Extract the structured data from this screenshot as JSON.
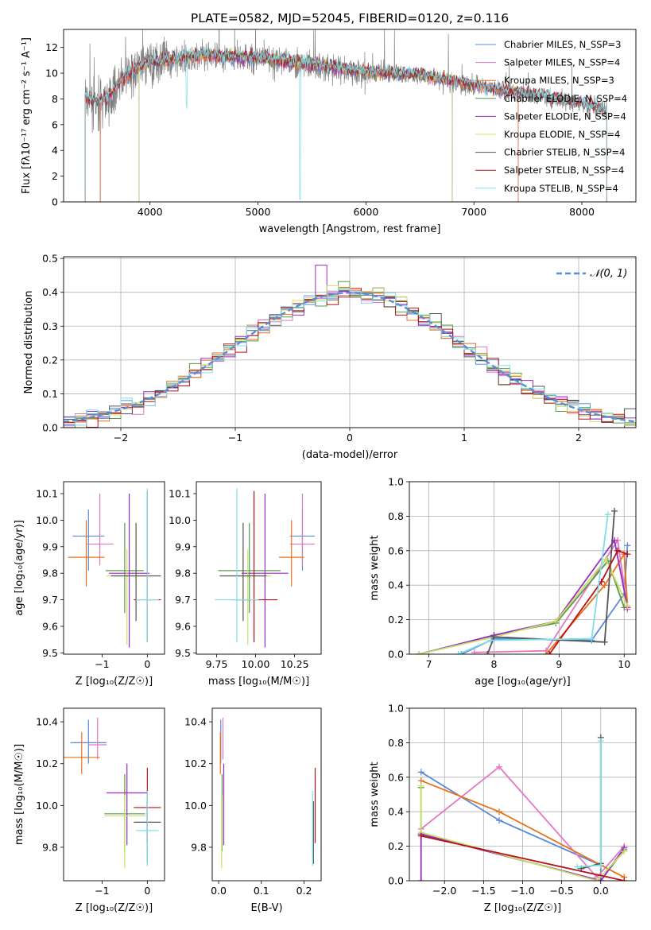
{
  "colors": {
    "chabrier_miles": "#5b8bd6",
    "salpeter_miles": "#e377c2",
    "kroupa_miles": "#e8711a",
    "chabrier_elodie": "#5a9a47",
    "salpeter_elodie": "#9a2bc0",
    "kroupa_elodie": "#c8e06a",
    "chabrier_stelib": "#555555",
    "salpeter_stelib": "#b5121b",
    "kroupa_stelib": "#7fdfe8",
    "spectrum": "#808080",
    "normal_curve": "#5b8bd6",
    "grid": "#b0b0b0"
  },
  "chart_data": [
    {
      "id": "spectrum",
      "type": "line",
      "title": "PLATE=0582, MJD=52045, FIBERID=0120, z=0.116",
      "xlabel": "wavelength [Angstrom, rest frame]",
      "ylabel": "Flux [fλ10⁻¹⁷ erg cm⁻² s⁻¹ A⁻¹]",
      "xlim": [
        3200,
        8500
      ],
      "ylim": [
        0,
        13.4
      ],
      "xticks": [
        4000,
        5000,
        6000,
        7000,
        8000
      ],
      "yticks": [
        0,
        2,
        4,
        6,
        8,
        10,
        12
      ],
      "grid": false,
      "legend_position": "top-right",
      "legend": [
        "Chabrier MILES, N_SSP=3",
        "Salpeter MILES, N_SSP=4",
        "Kroupa MILES, N_SSP=3",
        "Chabrier ELODIE, N_SSP=4",
        "Salpeter ELODIE, N_SSP=4",
        "Kroupa ELODIE, N_SSP=4",
        "Chabrier STELIB, N_SSP=4",
        "Salpeter STELIB, N_SSP=4",
        "Kroupa STELIB, N_SSP=4"
      ],
      "continuum": {
        "x": [
          3400,
          3500,
          3600,
          3700,
          3800,
          3900,
          4000,
          4200,
          4500,
          5000,
          5500,
          6000,
          6500,
          7000,
          7500,
          8000,
          8230
        ],
        "y": [
          8.1,
          7.6,
          7.9,
          9.0,
          9.8,
          10.4,
          10.8,
          11.0,
          11.3,
          11.1,
          10.6,
          10.0,
          9.8,
          9.0,
          8.3,
          7.6,
          7.0
        ]
      }
    },
    {
      "id": "residual_hist",
      "type": "histogram",
      "xlabel": "(data-model)/error",
      "ylabel": "Normed distribution",
      "xlim": [
        -2.5,
        2.5
      ],
      "ylim": [
        0,
        0.505
      ],
      "xticks": [
        -2,
        -1,
        0,
        1,
        2
      ],
      "yticks": [
        0.0,
        0.1,
        0.2,
        0.3,
        0.4,
        0.5
      ],
      "grid": true,
      "legend_position": "top-right",
      "legend": [
        "𝒩(0, 1)"
      ]
    },
    {
      "id": "age_vs_Z",
      "type": "scatter",
      "xlabel": "Z [log₁₀(Z/Z☉)]",
      "ylabel": "age  [log₁₀(age/yr)]",
      "xlim": [
        -1.85,
        0.38
      ],
      "ylim": [
        9.495,
        10.145
      ],
      "xticks": [
        -1,
        0
      ],
      "yticks": [
        9.5,
        9.6,
        9.7,
        9.8,
        9.9,
        10.0,
        10.1
      ],
      "points": [
        {
          "x": -1.3,
          "y": 9.94,
          "xerr": 0.35,
          "yerr_lo": 0.13,
          "yerr_hi": 0.1,
          "c": "chabrier_miles"
        },
        {
          "x": -1.05,
          "y": 9.91,
          "xerr": 0.3,
          "yerr_lo": 0.08,
          "yerr_hi": 0.19,
          "c": "salpeter_miles"
        },
        {
          "x": -1.35,
          "y": 9.86,
          "xerr": 0.4,
          "yerr_lo": 0.11,
          "yerr_hi": 0.14,
          "c": "kroupa_miles"
        },
        {
          "x": -0.5,
          "y": 9.81,
          "xerr": 0.42,
          "yerr_lo": 0.16,
          "yerr_hi": 0.18,
          "c": "chabrier_elodie"
        },
        {
          "x": -0.4,
          "y": 9.8,
          "xerr": 0.45,
          "yerr_lo": 0.28,
          "yerr_hi": 0.3,
          "c": "salpeter_elodie"
        },
        {
          "x": -0.45,
          "y": 9.79,
          "xerr": 0.45,
          "yerr_lo": 0.26,
          "yerr_hi": 0.1,
          "c": "kroupa_elodie"
        },
        {
          "x": -0.25,
          "y": 9.79,
          "xerr": 0.55,
          "yerr_lo": 0.17,
          "yerr_hi": 0.2,
          "c": "chabrier_stelib"
        },
        {
          "x": 0.0,
          "y": 9.7,
          "xerr": 0.3,
          "yerr_lo": 0.16,
          "yerr_hi": 0.41,
          "c": "salpeter_stelib"
        },
        {
          "x": 0.0,
          "y": 9.7,
          "xerr": 0.25,
          "yerr_lo": 0.16,
          "yerr_hi": 0.42,
          "c": "kroupa_stelib"
        }
      ]
    },
    {
      "id": "age_vs_mass",
      "type": "scatter",
      "xlabel": "mass [log₁₀(M/M☉)]",
      "ylabel": "",
      "xlim": [
        9.62,
        10.42
      ],
      "ylim": [
        9.495,
        10.145
      ],
      "xticks": [
        9.75,
        10.0,
        10.25
      ],
      "xticklabels": [
        "9.75",
        "10.00",
        "10.25"
      ],
      "yticks": [
        9.5,
        9.6,
        9.7,
        9.8,
        9.9,
        10.0,
        10.1
      ],
      "points": [
        {
          "x": 10.3,
          "y": 9.94,
          "xerr": 0.08,
          "yerr_lo": 0.13,
          "yerr_hi": 0.1,
          "c": "chabrier_miles"
        },
        {
          "x": 10.3,
          "y": 9.91,
          "xerr": 0.08,
          "yerr_lo": 0.08,
          "yerr_hi": 0.19,
          "c": "salpeter_miles"
        },
        {
          "x": 10.23,
          "y": 9.86,
          "xerr": 0.08,
          "yerr_lo": 0.11,
          "yerr_hi": 0.14,
          "c": "kroupa_miles"
        },
        {
          "x": 9.96,
          "y": 9.81,
          "xerr": 0.2,
          "yerr_lo": 0.16,
          "yerr_hi": 0.18,
          "c": "chabrier_elodie"
        },
        {
          "x": 10.06,
          "y": 9.8,
          "xerr": 0.15,
          "yerr_lo": 0.28,
          "yerr_hi": 0.3,
          "c": "salpeter_elodie"
        },
        {
          "x": 9.95,
          "y": 9.79,
          "xerr": 0.15,
          "yerr_lo": 0.26,
          "yerr_hi": 0.1,
          "c": "kroupa_elodie"
        },
        {
          "x": 9.92,
          "y": 9.79,
          "xerr": 0.15,
          "yerr_lo": 0.17,
          "yerr_hi": 0.2,
          "c": "chabrier_stelib"
        },
        {
          "x": 9.99,
          "y": 9.7,
          "xerr": 0.15,
          "yerr_lo": 0.16,
          "yerr_hi": 0.41,
          "c": "salpeter_stelib"
        },
        {
          "x": 9.88,
          "y": 9.7,
          "xerr": 0.14,
          "yerr_lo": 0.16,
          "yerr_hi": 0.42,
          "c": "kroupa_stelib"
        }
      ]
    },
    {
      "id": "mass_weight_vs_age",
      "type": "line",
      "xlabel": "age  [log₁₀(age/yr)]",
      "ylabel": "mass weight",
      "xlim": [
        6.7,
        10.18
      ],
      "ylim": [
        0,
        1.0
      ],
      "xticks": [
        7,
        8,
        9,
        10
      ],
      "yticks": [
        0.0,
        0.2,
        0.4,
        0.6,
        0.8,
        1.0
      ],
      "grid": true,
      "series": [
        {
          "c": "chabrier_miles",
          "x": [
            7.5,
            8.0,
            9.5,
            10.0,
            10.05
          ],
          "y": [
            0.0,
            0.09,
            0.08,
            0.35,
            0.63
          ]
        },
        {
          "c": "salpeter_miles",
          "x": [
            7.7,
            8.8,
            9.9,
            10.05
          ],
          "y": [
            0.01,
            0.02,
            0.66,
            0.26
          ]
        },
        {
          "c": "kroupa_miles",
          "x": [
            8.8,
            9.7,
            10.0,
            10.05
          ],
          "y": [
            0.0,
            0.4,
            0.58,
            0.28
          ]
        },
        {
          "c": "chabrier_elodie",
          "x": [
            6.85,
            8.0,
            8.95,
            9.75,
            10.0
          ],
          "y": [
            0.0,
            0.11,
            0.18,
            0.54,
            0.27
          ]
        },
        {
          "c": "salpeter_elodie",
          "x": [
            6.85,
            8.0,
            8.95,
            9.85,
            10.05
          ],
          "y": [
            0.0,
            0.11,
            0.19,
            0.66,
            0.27
          ]
        },
        {
          "c": "kroupa_elodie",
          "x": [
            6.85,
            8.0,
            8.95,
            9.72,
            10.05
          ],
          "y": [
            0.0,
            0.1,
            0.19,
            0.55,
            0.28
          ]
        },
        {
          "c": "chabrier_stelib",
          "x": [
            7.9,
            8.0,
            9.7,
            9.85
          ],
          "y": [
            0.0,
            0.1,
            0.07,
            0.83
          ]
        },
        {
          "c": "salpeter_stelib",
          "x": [
            8.85,
            9.65,
            9.9,
            10.05
          ],
          "y": [
            0.0,
            0.42,
            0.6,
            0.58
          ]
        },
        {
          "c": "kroupa_stelib",
          "x": [
            7.45,
            7.95,
            9.5,
            9.75
          ],
          "y": [
            0.0,
            0.08,
            0.09,
            0.81
          ]
        }
      ]
    },
    {
      "id": "mass_vs_Z",
      "type": "scatter",
      "xlabel": "Z [log₁₀(Z/Z☉)]",
      "ylabel": "mass [log₁₀(M/M☉)]",
      "xlim": [
        -1.85,
        0.38
      ],
      "ylim": [
        9.64,
        10.465
      ],
      "xticks": [
        -1,
        0
      ],
      "yticks": [
        9.8,
        10.0,
        10.2,
        10.4
      ],
      "points": [
        {
          "x": -1.3,
          "y": 10.3,
          "xerr": 0.4,
          "yerr_lo": 0.1,
          "yerr_hi": 0.11,
          "c": "chabrier_miles"
        },
        {
          "x": -1.1,
          "y": 10.29,
          "xerr": 0.2,
          "yerr_lo": 0.07,
          "yerr_hi": 0.13,
          "c": "salpeter_miles"
        },
        {
          "x": -1.45,
          "y": 10.23,
          "xerr": 0.4,
          "yerr_lo": 0.08,
          "yerr_hi": 0.12,
          "c": "kroupa_miles"
        },
        {
          "x": -0.5,
          "y": 9.96,
          "xerr": 0.45,
          "yerr_lo": 0.18,
          "yerr_hi": 0.19,
          "c": "chabrier_elodie"
        },
        {
          "x": -0.45,
          "y": 10.06,
          "xerr": 0.45,
          "yerr_lo": 0.25,
          "yerr_hi": 0.14,
          "c": "salpeter_elodie"
        },
        {
          "x": -0.5,
          "y": 9.95,
          "xerr": 0.45,
          "yerr_lo": 0.25,
          "yerr_hi": 0.1,
          "c": "kroupa_elodie"
        },
        {
          "x": 0.0,
          "y": 9.92,
          "xerr": 0.3,
          "yerr_lo": 0.2,
          "yerr_hi": 0.1,
          "c": "chabrier_stelib"
        },
        {
          "x": 0.0,
          "y": 9.99,
          "xerr": 0.3,
          "yerr_lo": 0.17,
          "yerr_hi": 0.19,
          "c": "salpeter_stelib"
        },
        {
          "x": 0.0,
          "y": 9.88,
          "xerr": 0.25,
          "yerr_lo": 0.17,
          "yerr_hi": 0.19,
          "c": "kroupa_stelib"
        }
      ]
    },
    {
      "id": "mass_vs_ebv",
      "type": "scatter",
      "xlabel": "E(B-V)",
      "ylabel": "",
      "xlim": [
        -0.015,
        0.24
      ],
      "ylim": [
        9.64,
        10.465
      ],
      "xticks": [
        0.0,
        0.1,
        0.2
      ],
      "xticklabels": [
        "0.0",
        "0.1",
        "0.2"
      ],
      "yticks": [
        9.8,
        10.0,
        10.2,
        10.4
      ],
      "points": [
        {
          "x": 0.005,
          "y": 10.3,
          "yerr_lo": 0.1,
          "yerr_hi": 0.11,
          "c": "chabrier_miles"
        },
        {
          "x": 0.01,
          "y": 10.29,
          "yerr_lo": 0.07,
          "yerr_hi": 0.13,
          "c": "salpeter_miles"
        },
        {
          "x": 0.004,
          "y": 10.23,
          "yerr_lo": 0.08,
          "yerr_hi": 0.12,
          "c": "kroupa_miles"
        },
        {
          "x": 0.008,
          "y": 9.96,
          "yerr_lo": 0.18,
          "yerr_hi": 0.19,
          "c": "chabrier_elodie"
        },
        {
          "x": 0.012,
          "y": 10.06,
          "yerr_lo": 0.25,
          "yerr_hi": 0.14,
          "c": "salpeter_elodie"
        },
        {
          "x": 0.007,
          "y": 9.95,
          "yerr_lo": 0.25,
          "yerr_hi": 0.1,
          "c": "kroupa_elodie"
        },
        {
          "x": 0.222,
          "y": 9.92,
          "yerr_lo": 0.2,
          "yerr_hi": 0.1,
          "c": "chabrier_stelib"
        },
        {
          "x": 0.226,
          "y": 9.99,
          "yerr_lo": 0.17,
          "yerr_hi": 0.19,
          "c": "salpeter_stelib"
        },
        {
          "x": 0.22,
          "y": 9.88,
          "yerr_lo": 0.17,
          "yerr_hi": 0.19,
          "c": "kroupa_stelib"
        }
      ]
    },
    {
      "id": "mass_weight_vs_Z",
      "type": "line",
      "xlabel": "Z [log₁₀(Z/Z☉)]",
      "ylabel": "mass weight",
      "xlim": [
        -2.45,
        0.45
      ],
      "ylim": [
        0,
        1.0
      ],
      "xticks": [
        -2.0,
        -1.5,
        -1.0,
        -0.5,
        0.0
      ],
      "xticklabels": [
        "−2.0",
        "−1.5",
        "−1.0",
        "−0.5",
        "0.0"
      ],
      "yticks": [
        0.0,
        0.2,
        0.4,
        0.6,
        0.8,
        1.0
      ],
      "grid": true,
      "series": [
        {
          "c": "chabrier_miles",
          "x": [
            -2.3,
            -1.3,
            0.0,
            0.0
          ],
          "y": [
            0.63,
            0.35,
            0.09,
            0.0
          ]
        },
        {
          "c": "salpeter_miles",
          "x": [
            -2.3,
            -1.3,
            -0.05,
            0.3
          ],
          "y": [
            0.3,
            0.66,
            0.02,
            0.2
          ]
        },
        {
          "c": "kroupa_miles",
          "x": [
            -2.3,
            -1.3,
            0.3
          ],
          "y": [
            0.58,
            0.4,
            0.02
          ]
        },
        {
          "c": "chabrier_elodie",
          "x": [
            -2.3,
            -2.3,
            0.0,
            0.3
          ],
          "y": [
            0.54,
            0.27,
            0.0,
            0.18
          ]
        },
        {
          "c": "salpeter_elodie",
          "x": [
            -2.3,
            -2.3,
            0.0,
            0.3
          ],
          "y": [
            0.0,
            0.27,
            0.0,
            0.19
          ]
        },
        {
          "c": "kroupa_elodie",
          "x": [
            -2.3,
            -2.3,
            -0.05,
            0.3
          ],
          "y": [
            0.55,
            0.28,
            0.0,
            0.17
          ]
        },
        {
          "c": "chabrier_stelib",
          "x": [
            -0.25,
            0.0,
            0.0
          ],
          "y": [
            0.07,
            0.1,
            0.83
          ]
        },
        {
          "c": "salpeter_stelib",
          "x": [
            -2.3,
            0.3
          ],
          "y": [
            0.26,
            0.0
          ]
        },
        {
          "c": "kroupa_stelib",
          "x": [
            -0.3,
            0.0,
            0.0
          ],
          "y": [
            0.08,
            0.09,
            0.81
          ]
        }
      ]
    }
  ]
}
